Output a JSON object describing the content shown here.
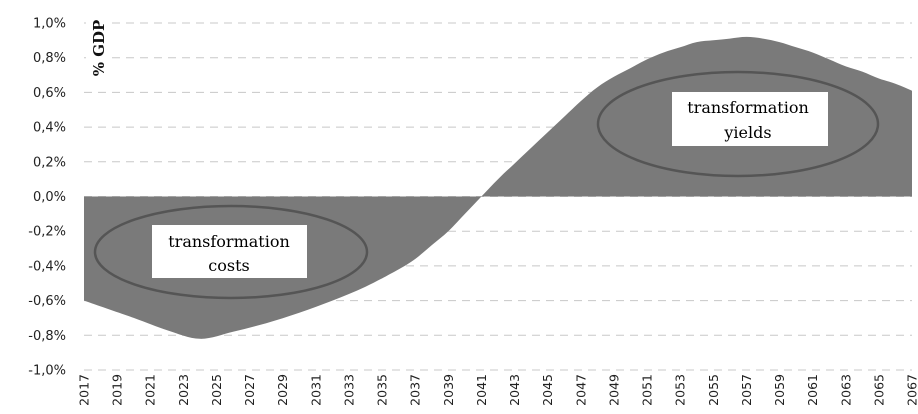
{
  "chart_data": {
    "type": "area",
    "ylabel": "% GDP",
    "ylim": [
      -1.0,
      1.0
    ],
    "yticks": [
      -1.0,
      -0.8,
      -0.6,
      -0.4,
      -0.2,
      0.0,
      0.2,
      0.4,
      0.6,
      0.8,
      1.0
    ],
    "ytick_labels": [
      "-1,0%",
      "-0,8%",
      "-0,6%",
      "-0,4%",
      "-0,2%",
      "0,0%",
      "0,2%",
      "0,4%",
      "0,6%",
      "0,8%",
      "1,0%"
    ],
    "xtick_labels": [
      "2017",
      "2019",
      "2021",
      "2023",
      "2025",
      "2027",
      "2029",
      "2031",
      "2033",
      "2035",
      "2037",
      "2039",
      "2041",
      "2043",
      "2045",
      "2047",
      "2049",
      "2051",
      "2053",
      "2055",
      "2057",
      "2059",
      "2061",
      "2063",
      "2065",
      "2067"
    ],
    "grid": true,
    "fill_color": "#7a7a7a",
    "x": [
      2017,
      2020,
      2022,
      2024,
      2026,
      2028,
      2030,
      2032,
      2034,
      2036,
      2037,
      2038,
      2039,
      2040,
      2041,
      2042,
      2043,
      2044,
      2045,
      2046,
      2047,
      2048,
      2049,
      2050,
      2051,
      2052,
      2053,
      2054,
      2055,
      2056,
      2057,
      2058,
      2059,
      2060,
      2061,
      2062,
      2063,
      2064,
      2065,
      2066,
      2067
    ],
    "values": [
      -0.6,
      -0.7,
      -0.77,
      -0.82,
      -0.78,
      -0.73,
      -0.67,
      -0.6,
      -0.52,
      -0.42,
      -0.36,
      -0.28,
      -0.2,
      -0.1,
      0.0,
      0.1,
      0.19,
      0.28,
      0.37,
      0.46,
      0.55,
      0.63,
      0.69,
      0.74,
      0.79,
      0.83,
      0.86,
      0.89,
      0.9,
      0.91,
      0.92,
      0.91,
      0.89,
      0.86,
      0.83,
      0.79,
      0.75,
      0.72,
      0.68,
      0.65,
      0.61
    ],
    "annotations": [
      {
        "id": "costs",
        "lines": [
          "transformation",
          "costs"
        ],
        "x": 2024,
        "y": -0.33
      },
      {
        "id": "yields",
        "lines": [
          "transformation",
          "yields"
        ],
        "x": 2057,
        "y": 0.45
      }
    ]
  }
}
